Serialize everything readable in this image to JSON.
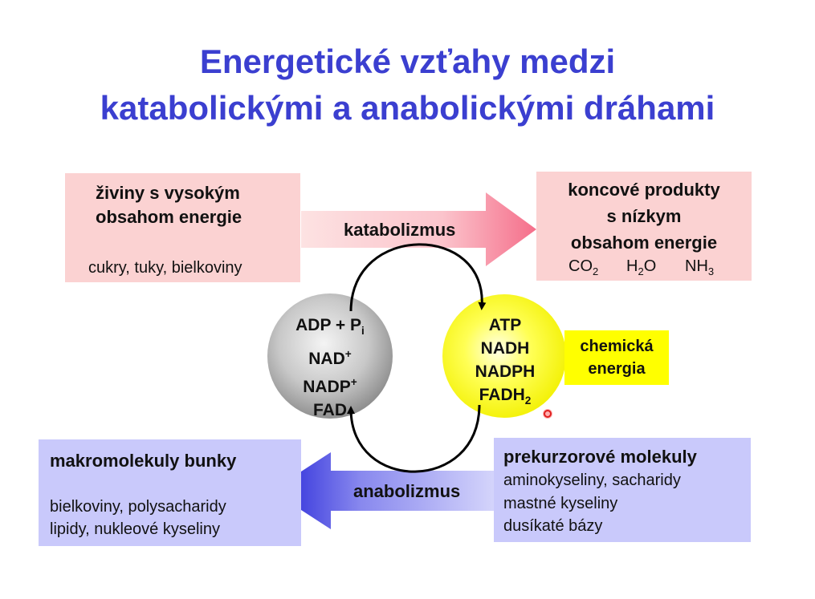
{
  "title": {
    "line1": "Energetické vzťahy medzi",
    "line2": "katabolickými a anabolickými dráhami"
  },
  "nutrients": {
    "title_line1": "živiny s vysokým",
    "title_line2": "obsahom energie",
    "examples": "cukry, tuky, bielkoviny"
  },
  "end_products": {
    "title_line1": "koncové produkty",
    "title_line2": "s nízkym",
    "title_line3": "obsahom energie",
    "co2_base": "CO",
    "co2_sub": "2",
    "h2o_pre": "H",
    "h2o_sub": "2",
    "h2o_post": "O",
    "nh3_base": "NH",
    "nh3_sub": "3"
  },
  "catabolism_label": "katabolizmus",
  "anabolism_label": "anabolizmus",
  "low_energy": {
    "adp": "ADP + P",
    "adp_sub": "i",
    "nad": "NAD",
    "nad_sup": "+",
    "nadp": "NADP",
    "nadp_sup": "+",
    "fad": "FAD"
  },
  "high_energy": {
    "atp": "ATP",
    "nadh": "NADH",
    "nadph": "NADPH",
    "fadh": "FADH",
    "fadh_sub": "2"
  },
  "chemical_energy": {
    "line1": "chemická",
    "line2": "energia"
  },
  "macromolecules": {
    "title": "makromolekuly bunky",
    "line1": "bielkoviny, polysacharidy",
    "line2": "lipidy, nukleové kyseliny"
  },
  "precursors": {
    "title": "prekurzorové molekuly",
    "line1": "aminokyseliny, sacharidy",
    "line2": "mastné kyseliny",
    "line3": "dusíkaté bázy"
  },
  "colors": {
    "title": "#3b3fd0",
    "pink_box": "#fbd2d2",
    "blue_box": "#c9c9fb",
    "yellow": "#ffff00"
  }
}
